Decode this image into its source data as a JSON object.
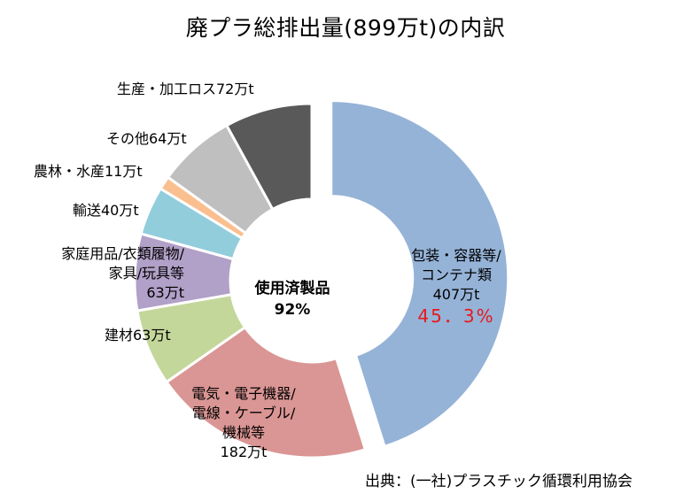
{
  "chart_data": {
    "type": "pie",
    "title": "廃プラ総排出量(899万t)の内訳",
    "unit": "万t",
    "total": 899,
    "slices": [
      {
        "name": "包装・容器等/コンテナ類",
        "lines": [
          "包装・容器等/",
          "コンテナ類"
        ],
        "value": 407,
        "value_text": "407万t",
        "percent_text": "45．3%",
        "color": "#95b3d7",
        "exploded": true
      },
      {
        "name": "電気・電子機器/電線・ケーブル/機械等",
        "lines": [
          "電気・電子機器/",
          "電線・ケーブル/",
          "機械等"
        ],
        "value": 182,
        "value_text": "182万t",
        "color": "#da9694"
      },
      {
        "name": "建材",
        "value": 63,
        "value_text": "建材63万t",
        "color": "#c4d79b"
      },
      {
        "name": "家庭用品/衣類履物/家具/玩具等",
        "lines": [
          "家庭用品/衣類履物/",
          "家具/玩具等"
        ],
        "value": 63,
        "value_text": "63万t",
        "color": "#b1a0c7"
      },
      {
        "name": "輸送",
        "value": 40,
        "value_text": "輸送40万t",
        "color": "#92cddc"
      },
      {
        "name": "農林・水産",
        "value": 11,
        "value_text": "農林・水産11万t",
        "color": "#fabf8f"
      },
      {
        "name": "その他",
        "value": 64,
        "value_text": "その他64万t",
        "color": "#bfbfbf"
      },
      {
        "name": "生産・加工ロス",
        "value": 72,
        "value_text": "生産・加工ロス72万t",
        "color": "#595959"
      }
    ],
    "center_label": {
      "line1": "使用済製品",
      "line2": "92%"
    }
  },
  "source": "出典：(一社)プラスチック循環利用協会"
}
